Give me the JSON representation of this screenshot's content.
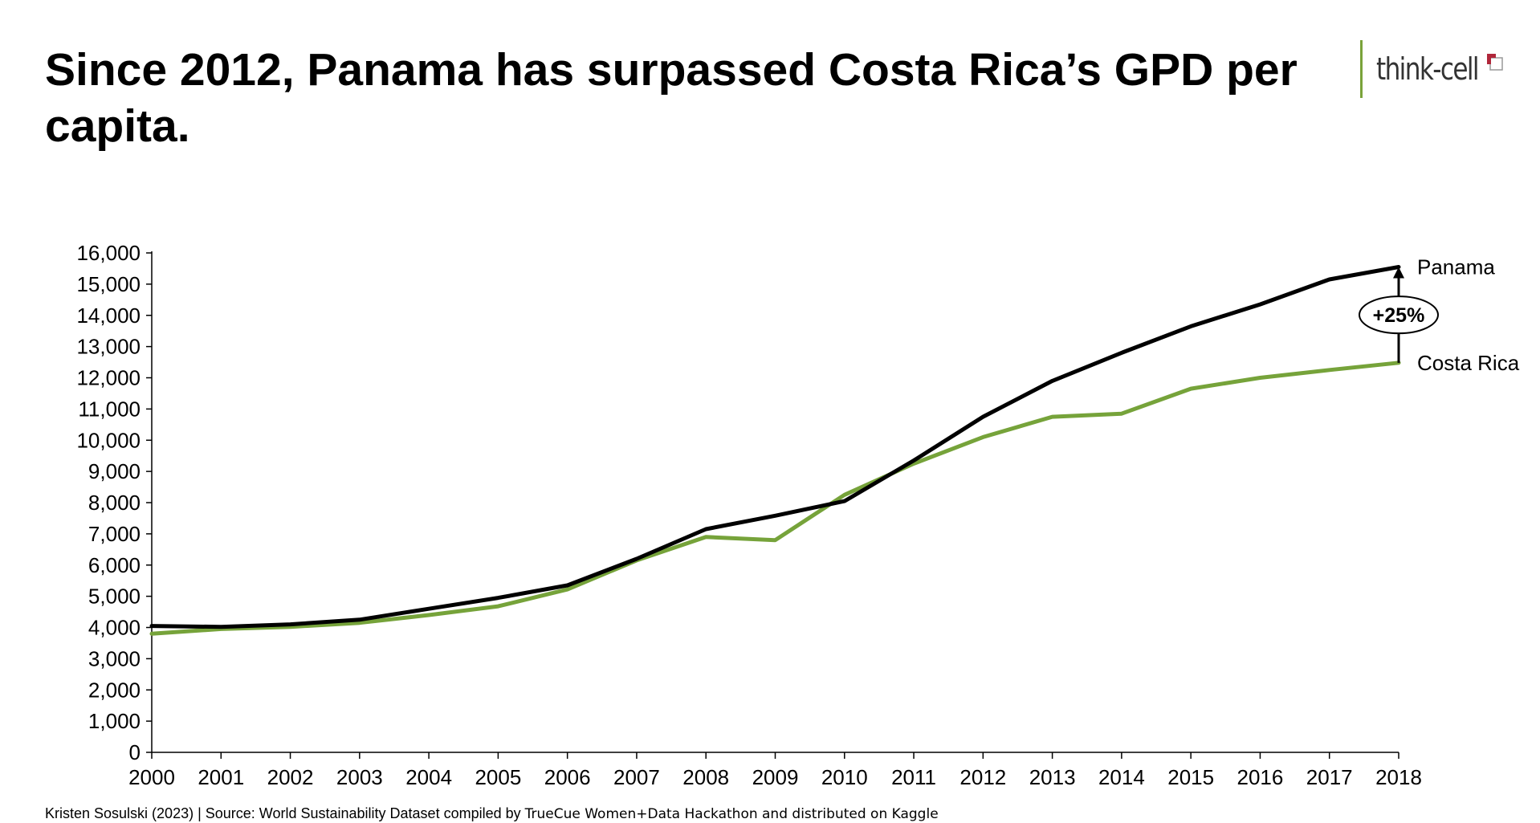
{
  "header": {
    "title": "Since 2012, Panama has surpassed Costa Rica’s GPD per capita.",
    "logo_text": "think-cell"
  },
  "footer": {
    "source_main": "Kristen Sosulski (2023) | Source: World Sustainability Dataset compiled by ",
    "source_rest": "TrueCue Women+Data Hackathon and distributed on Kaggle"
  },
  "colors": {
    "panama": "#000000",
    "costa_rica": "#76a33a",
    "axis": "#000000",
    "logo_accent": "#7aa33a"
  },
  "chart_data": {
    "type": "line",
    "title": "Since 2012, Panama has surpassed Costa Rica’s GPD per capita.",
    "xlabel": "",
    "ylabel": "",
    "x": [
      2000,
      2001,
      2002,
      2003,
      2004,
      2005,
      2006,
      2007,
      2008,
      2009,
      2010,
      2011,
      2012,
      2013,
      2014,
      2015,
      2016,
      2017,
      2018
    ],
    "ylim": [
      0,
      16000
    ],
    "yticks": [
      0,
      1000,
      2000,
      3000,
      4000,
      5000,
      6000,
      7000,
      8000,
      9000,
      10000,
      11000,
      12000,
      13000,
      14000,
      15000,
      16000
    ],
    "ytick_labels": [
      "0",
      "1,000",
      "2,000",
      "3,000",
      "4,000",
      "5,000",
      "6,000",
      "7,000",
      "8,000",
      "9,000",
      "10,000",
      "11,000",
      "12,000",
      "13,000",
      "14,000",
      "15,000",
      "16,000"
    ],
    "grid": false,
    "legend": "direct labels at line ends (right)",
    "series": [
      {
        "name": "Panama",
        "color": "#000000",
        "values": [
          4050,
          4020,
          4100,
          4250,
          4600,
          4950,
          5350,
          6200,
          7150,
          7580,
          8050,
          9350,
          10750,
          11900,
          12800,
          13650,
          14350,
          15150,
          15550
        ]
      },
      {
        "name": "Costa Rica",
        "color": "#76a33a",
        "values": [
          3800,
          3950,
          4020,
          4150,
          4400,
          4680,
          5220,
          6150,
          6900,
          6800,
          8250,
          9250,
          10100,
          10750,
          10850,
          11650,
          12000,
          12250,
          12480
        ]
      }
    ],
    "annotation": {
      "label": "+25%",
      "x": 2018,
      "from_series": "Costa Rica",
      "to_series": "Panama"
    }
  }
}
